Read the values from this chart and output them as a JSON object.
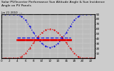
{
  "title_line1": "Solar PV/Inverter Performance Sun Altitude Angle & Sun Incidence Angle on PV Panels",
  "subtitle": "Jun 21 2010  ---",
  "x_values": [
    0,
    1,
    2,
    3,
    4,
    5,
    6,
    7,
    8,
    9,
    10,
    11,
    12,
    13,
    14,
    15,
    16,
    17,
    18,
    19,
    20,
    21,
    22,
    23
  ],
  "sun_incidence": [
    90,
    90,
    90,
    90,
    90,
    85,
    78,
    65,
    52,
    40,
    30,
    24,
    22,
    24,
    30,
    40,
    52,
    65,
    78,
    85,
    90,
    90,
    90,
    90
  ],
  "sun_altitude": [
    0,
    0,
    0,
    0,
    0,
    3,
    10,
    20,
    32,
    43,
    52,
    58,
    60,
    58,
    52,
    43,
    32,
    20,
    10,
    3,
    0,
    0,
    0,
    0
  ],
  "hline_red_y": 38,
  "hline_blue_y": 42,
  "hline_xstart": 4,
  "hline_xend": 17,
  "blue_color": "#0000dd",
  "red_color": "#dd0000",
  "bg_color": "#cccccc",
  "plot_bg": "#bbbbbb",
  "grid_color": "#ffffff",
  "ymin": 0,
  "ymax": 90,
  "yticks": [
    10,
    20,
    30,
    40,
    50,
    60,
    70,
    80,
    90
  ],
  "ytick_labels": [
    "10",
    "20",
    "30",
    "40",
    "50",
    "60",
    "70",
    "80",
    "90"
  ],
  "xtick_positions": [
    0,
    2,
    4,
    6,
    8,
    10,
    12,
    14,
    16,
    18,
    20,
    22
  ],
  "xtick_labels": [
    "0",
    "2",
    "4",
    "6",
    "8",
    "10",
    "12",
    "14",
    "16",
    "18",
    "20",
    "22"
  ],
  "title_fontsize": 3.2,
  "subtitle_fontsize": 2.8,
  "tick_fontsize": 3.0
}
